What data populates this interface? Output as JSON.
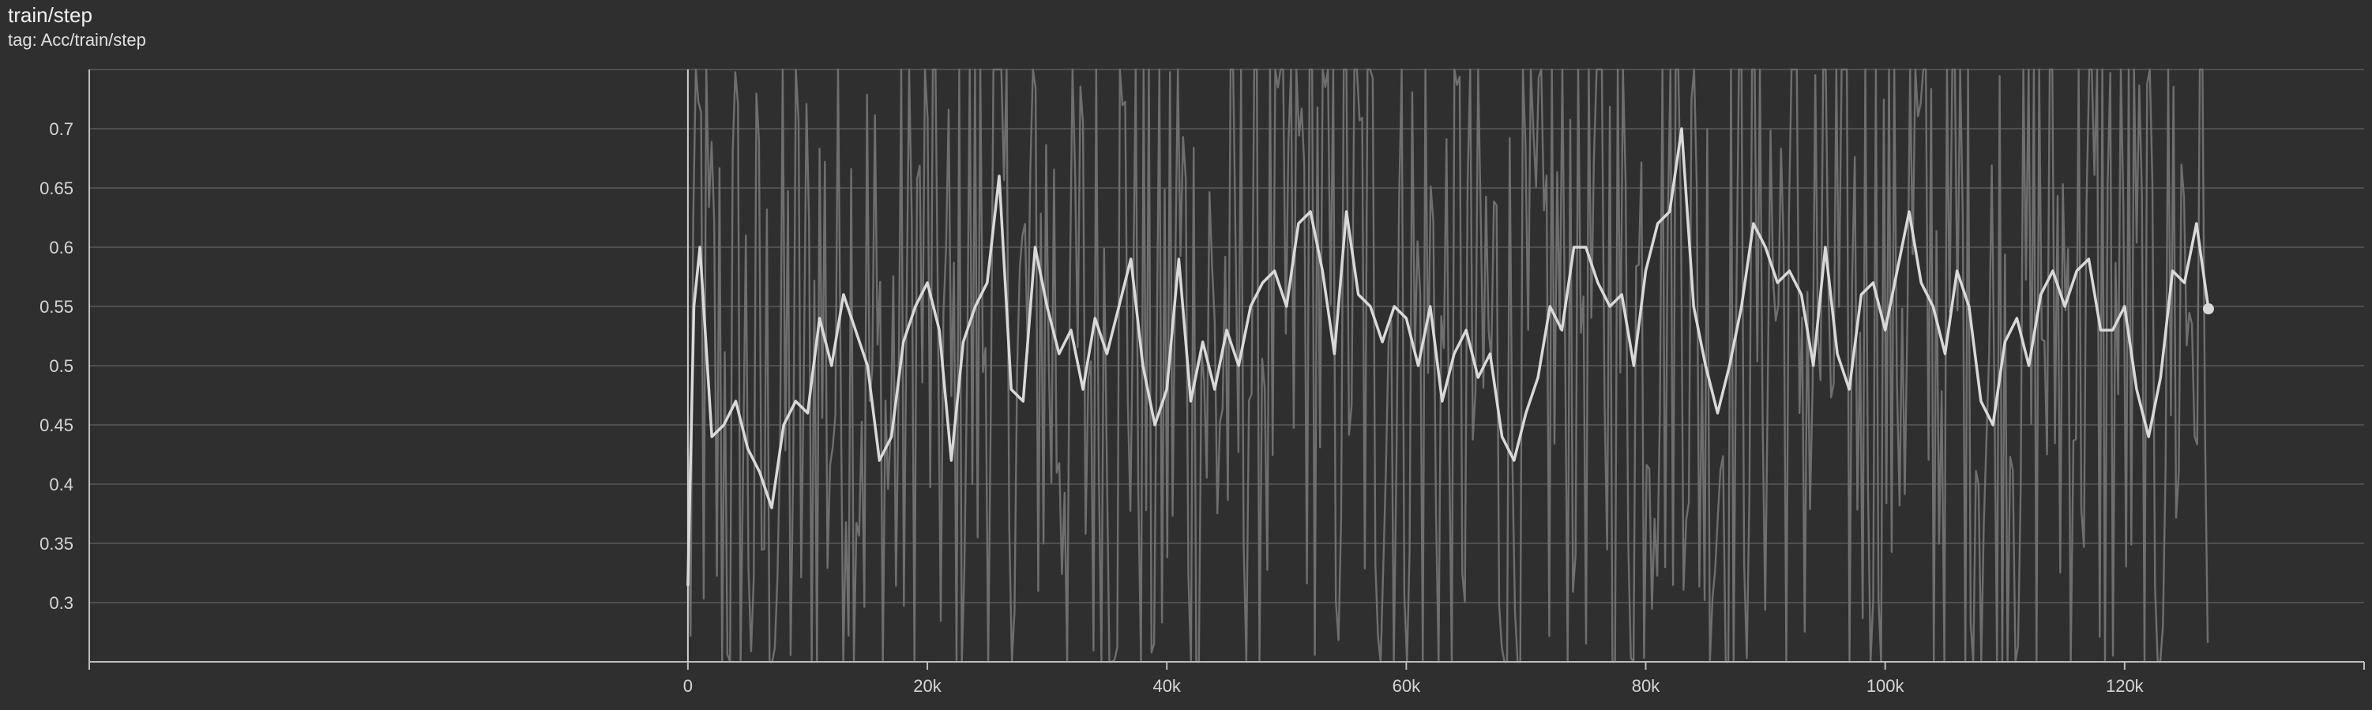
{
  "header": {
    "title": "train/step",
    "tag": "tag: Acc/train/step"
  },
  "colors": {
    "background": "#2f2f2f",
    "grid": "#5a5a5a",
    "axis": "#bdbdbd",
    "raw_series": "#6f6f6f",
    "smoothed_series": "#d9d9d9"
  },
  "chart_data": {
    "type": "line",
    "title": "train/step",
    "xlabel": "",
    "ylabel": "",
    "xlim": [
      -50000,
      140000
    ],
    "ylim": [
      0.25,
      0.75
    ],
    "grid": true,
    "x_ticks": [
      0,
      20000,
      40000,
      60000,
      80000,
      100000,
      120000
    ],
    "x_tick_labels": [
      "0",
      "20k",
      "40k",
      "60k",
      "80k",
      "100k",
      "120k"
    ],
    "y_ticks": [
      0.3,
      0.35,
      0.4,
      0.45,
      0.5,
      0.55,
      0.6,
      0.65,
      0.7
    ],
    "y_tick_labels": [
      "0.3",
      "0.35",
      "0.4",
      "0.45",
      "0.5",
      "0.55",
      "0.6",
      "0.65",
      "0.7"
    ],
    "series": [
      {
        "role": "smoothed",
        "x": [
          0,
          500,
          1000,
          2000,
          3000,
          4000,
          5000,
          6000,
          7000,
          8000,
          9000,
          10000,
          11000,
          12000,
          13000,
          14000,
          15000,
          16000,
          17000,
          18000,
          19000,
          20000,
          21000,
          22000,
          23000,
          24000,
          25000,
          26000,
          27000,
          28000,
          29000,
          30000,
          31000,
          32000,
          33000,
          34000,
          35000,
          36000,
          37000,
          38000,
          39000,
          40000,
          41000,
          42000,
          43000,
          44000,
          45000,
          46000,
          47000,
          48000,
          49000,
          50000,
          51000,
          52000,
          53000,
          54000,
          55000,
          56000,
          57000,
          58000,
          59000,
          60000,
          61000,
          62000,
          63000,
          64000,
          65000,
          66000,
          67000,
          68000,
          69000,
          70000,
          71000,
          72000,
          73000,
          74000,
          75000,
          76000,
          77000,
          78000,
          79000,
          80000,
          81000,
          82000,
          83000,
          84000,
          85000,
          86000,
          87000,
          88000,
          89000,
          90000,
          91000,
          92000,
          93000,
          94000,
          95000,
          96000,
          97000,
          98000,
          99000,
          100000,
          101000,
          102000,
          103000,
          104000,
          105000,
          106000,
          107000,
          108000,
          109000,
          110000,
          111000,
          112000,
          113000,
          114000,
          115000,
          116000,
          117000,
          118000,
          119000,
          120000,
          121000,
          122000,
          123000,
          124000,
          125000,
          126000,
          127000
        ],
        "y": [
          0.315,
          0.55,
          0.6,
          0.44,
          0.45,
          0.47,
          0.43,
          0.41,
          0.38,
          0.45,
          0.47,
          0.46,
          0.54,
          0.5,
          0.56,
          0.53,
          0.5,
          0.42,
          0.44,
          0.52,
          0.55,
          0.57,
          0.53,
          0.42,
          0.52,
          0.55,
          0.57,
          0.66,
          0.48,
          0.47,
          0.6,
          0.55,
          0.51,
          0.53,
          0.48,
          0.54,
          0.51,
          0.55,
          0.59,
          0.5,
          0.45,
          0.48,
          0.59,
          0.47,
          0.52,
          0.48,
          0.53,
          0.5,
          0.55,
          0.57,
          0.58,
          0.55,
          0.62,
          0.63,
          0.58,
          0.51,
          0.63,
          0.56,
          0.55,
          0.52,
          0.55,
          0.54,
          0.5,
          0.55,
          0.47,
          0.51,
          0.53,
          0.49,
          0.51,
          0.44,
          0.42,
          0.46,
          0.49,
          0.55,
          0.53,
          0.6,
          0.6,
          0.57,
          0.55,
          0.56,
          0.5,
          0.58,
          0.62,
          0.63,
          0.7,
          0.55,
          0.5,
          0.46,
          0.5,
          0.55,
          0.62,
          0.6,
          0.57,
          0.58,
          0.56,
          0.5,
          0.6,
          0.51,
          0.48,
          0.56,
          0.57,
          0.53,
          0.58,
          0.63,
          0.57,
          0.55,
          0.51,
          0.58,
          0.55,
          0.47,
          0.45,
          0.52,
          0.54,
          0.5,
          0.56,
          0.58,
          0.55,
          0.58,
          0.59,
          0.53,
          0.53,
          0.55,
          0.48,
          0.44,
          0.49,
          0.58,
          0.57,
          0.62,
          0.548
        ]
      }
    ]
  }
}
